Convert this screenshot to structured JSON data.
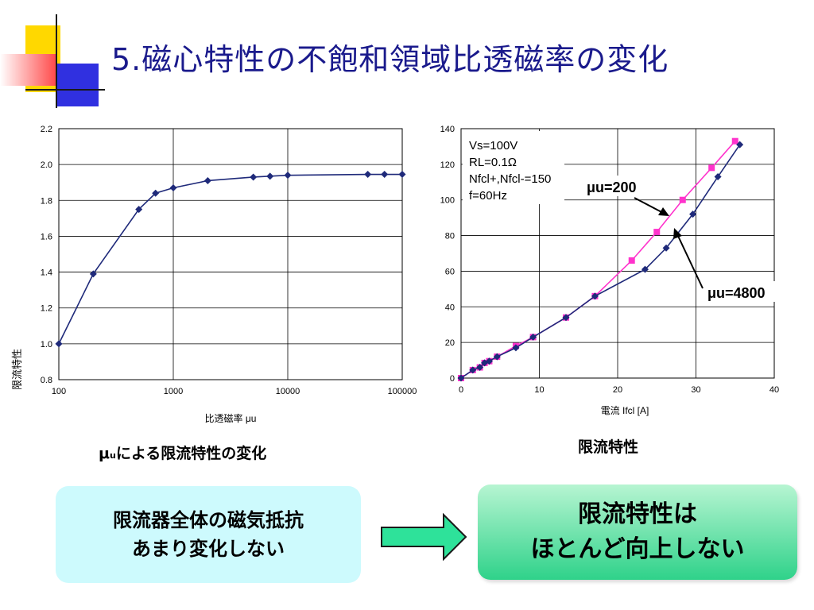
{
  "title": "5.磁心特性の不飽和領域比透磁率の変化",
  "chart_data": [
    {
      "type": "line",
      "xscale": "log",
      "xlabel": "比透磁率 μu",
      "ylabel": "限流特性",
      "xlim": [
        100,
        100000
      ],
      "ylim": [
        0.8,
        2.2
      ],
      "xticks": [
        "100",
        "1000",
        "10000",
        "100000"
      ],
      "yticks": [
        "0.8",
        "1.0",
        "1.2",
        "1.4",
        "1.6",
        "1.8",
        "2.0",
        "2.2"
      ],
      "grid": true,
      "series": [
        {
          "x": [
            100,
            200,
            500,
            700,
            1000,
            2000,
            5000,
            7000,
            10000,
            50000,
            70000,
            100000
          ],
          "y": [
            1.0,
            1.39,
            1.75,
            1.84,
            1.87,
            1.91,
            1.93,
            1.935,
            1.94,
            1.945,
            1.945,
            1.945
          ],
          "color": "#1f2a7a",
          "marker": "diamond"
        }
      ]
    },
    {
      "type": "line",
      "xlabel": "電流 Ifcl [A]",
      "xlim": [
        0,
        40
      ],
      "ylim": [
        0,
        140
      ],
      "xticks": [
        "0",
        "10",
        "20",
        "30",
        "40"
      ],
      "yticks": [
        "0",
        "20",
        "40",
        "60",
        "80",
        "100",
        "120",
        "140"
      ],
      "grid": true,
      "legend_box": [
        "Vs=100V",
        "RL=0.1Ω",
        "Nfcl+,Nfcl-=150",
        "f=60Hz"
      ],
      "annotations": [
        {
          "text": "μu=200"
        },
        {
          "text": "μu=4800"
        }
      ],
      "series": [
        {
          "name": "μu=200",
          "color": "#ff33cc",
          "marker": "square",
          "x": [
            0,
            1.5,
            2.4,
            3.0,
            3.6,
            4.6,
            7.0,
            9.2,
            13.4,
            17.1,
            21.8,
            25.0,
            28.3,
            32.0,
            35.0
          ],
          "y": [
            0,
            4.5,
            6.0,
            8.5,
            9.5,
            12.0,
            18.0,
            23.0,
            34.0,
            46.0,
            66.0,
            82.0,
            100.0,
            118.0,
            133.0
          ]
        },
        {
          "name": "μu=4800",
          "color": "#1f2a7a",
          "marker": "diamond",
          "x": [
            0,
            1.5,
            2.4,
            3.0,
            3.6,
            4.6,
            7.0,
            9.2,
            13.4,
            17.1,
            23.5,
            26.2,
            29.6,
            32.8,
            35.6
          ],
          "y": [
            0,
            4.5,
            6.0,
            8.5,
            9.5,
            12.0,
            17.0,
            23.0,
            34.0,
            46.0,
            61.0,
            73.0,
            92.0,
            113.0,
            131.0
          ]
        }
      ]
    }
  ],
  "captions": {
    "left_mu": "μ",
    "left_sub": "u",
    "left_rest": "による限流特性の変化",
    "right": "限流特性"
  },
  "box_left": {
    "line1": "限流器全体の磁気抵抗",
    "line2": "あまり変化しない"
  },
  "box_right": {
    "line1": "限流特性は",
    "line2": "ほとんど向上しない"
  },
  "colors": {
    "title": "#1a1a8c",
    "arrow": "#2ee29a",
    "box_left": "#cdfafd",
    "box_right": "#2fd28a"
  }
}
